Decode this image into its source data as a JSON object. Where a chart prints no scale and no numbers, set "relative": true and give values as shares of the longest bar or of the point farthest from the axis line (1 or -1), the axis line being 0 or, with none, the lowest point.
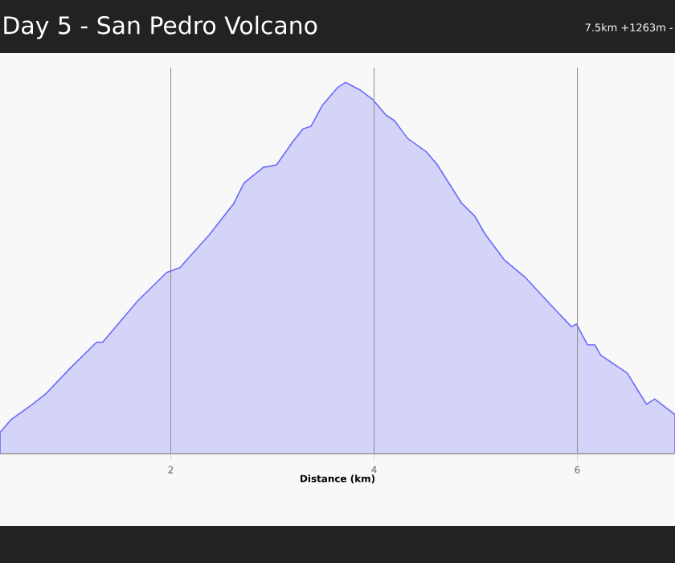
{
  "chart_data": {
    "type": "area",
    "title": "Day 5 - San Pedro Volcano",
    "subtitle": "7.5km +1263m -",
    "xlabel": "Distance (km)",
    "relative": true,
    "xlim": [
      0.32,
      6.96
    ],
    "xticks": [
      2,
      4,
      6
    ],
    "grid": true,
    "color": "#d4d4f8",
    "x": [
      0.32,
      0.43,
      0.64,
      0.77,
      1.01,
      1.27,
      1.33,
      1.67,
      1.96,
      2.09,
      2.38,
      2.62,
      2.72,
      2.91,
      3.04,
      3.2,
      3.3,
      3.38,
      3.49,
      3.64,
      3.72,
      3.86,
      3.99,
      4.12,
      4.2,
      4.33,
      4.51,
      4.62,
      4.86,
      4.99,
      5.09,
      5.28,
      5.49,
      5.75,
      5.94,
      5.99,
      6.1,
      6.17,
      6.23,
      6.49,
      6.6,
      6.68,
      6.76,
      6.96
    ],
    "values": [
      0.057,
      0.092,
      0.133,
      0.161,
      0.23,
      0.3,
      0.3,
      0.41,
      0.488,
      0.501,
      0.59,
      0.674,
      0.729,
      0.771,
      0.778,
      0.84,
      0.875,
      0.882,
      0.938,
      0.986,
      1.0,
      0.98,
      0.953,
      0.911,
      0.897,
      0.849,
      0.814,
      0.779,
      0.675,
      0.64,
      0.592,
      0.522,
      0.474,
      0.397,
      0.342,
      0.349,
      0.293,
      0.293,
      0.265,
      0.217,
      0.168,
      0.133,
      0.147,
      0.105
    ]
  }
}
